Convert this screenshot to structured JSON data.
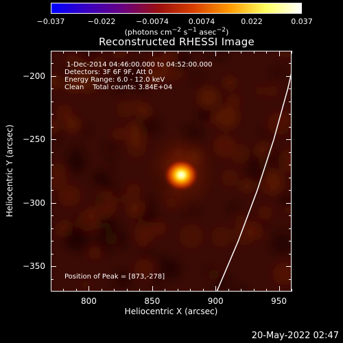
{
  "colorbar": {
    "ticks": [
      "−0.037",
      "−0.022",
      "−0.0074",
      "0.0074",
      "0.022",
      "0.037"
    ],
    "unit_html": "(photons cm<sup>−2</sup> s<sup>−1</sup> asec<sup>−2</sup>)",
    "colors": [
      "#0000ff",
      "#3a00c0",
      "#6a0080",
      "#9a1010",
      "#d84000",
      "#ff9a00",
      "#ffff60",
      "#ffffff"
    ]
  },
  "chart_data": {
    "type": "heatmap",
    "title": "Reconstructed RHESSI Image",
    "xlabel": "Heliocentric X (arcsec)",
    "ylabel": "Heliocentric Y (arcsec)",
    "xlim": [
      770,
      960
    ],
    "ylim": [
      -370,
      -180
    ],
    "xticks": [
      800,
      850,
      900,
      950
    ],
    "yticks": [
      -200,
      -250,
      -300,
      -350
    ],
    "colorbar_range": [
      -0.037,
      0.037
    ],
    "peak": [
      873,
      -278
    ],
    "limb_curve": [
      [
        901,
        -370
      ],
      [
        918,
        -330
      ],
      [
        933,
        -290
      ],
      [
        946,
        -250
      ],
      [
        957,
        -210
      ],
      [
        964,
        -180
      ]
    ],
    "info_lines": [
      " 1-Dec-2014 04:46:00.000 to 04:52:00.000",
      "Detectors: 3F 6F 9F, Att 0",
      "Energy Range: 6.0 - 12.0 keV",
      "Clean    Total counts: 3.84E+04"
    ],
    "peak_label": "Position of Peak = [873,-278]"
  },
  "timestamp": "20-May-2022 02:47"
}
